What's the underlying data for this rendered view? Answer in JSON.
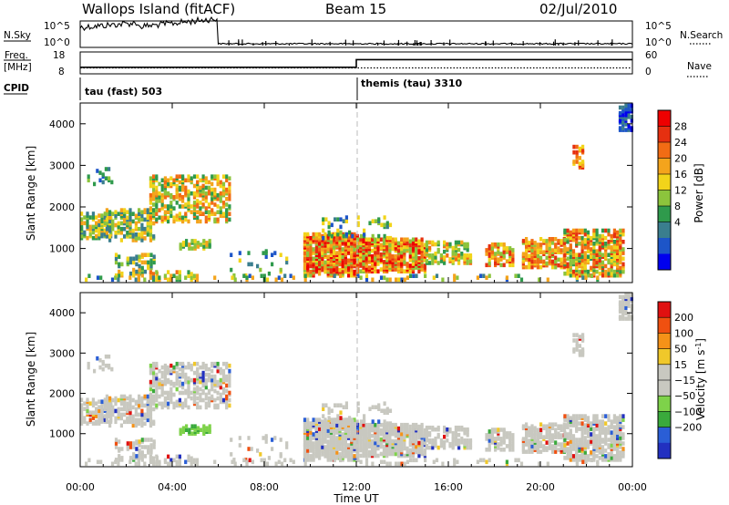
{
  "header": {
    "station": "Wallops Island (fitACF)",
    "beam": "Beam 15",
    "date": "02/Jul/2010"
  },
  "labels": {
    "nsky": "N.Sky",
    "freq": "Freq.",
    "freq_unit": "[MHz]",
    "cpid": "CPID",
    "nsearch": "N.Search",
    "nave": "Nave"
  },
  "cpid_programs": [
    {
      "name": "tau (fast) 503",
      "start_hour": 0
    },
    {
      "name": "themis (tau) 3310",
      "start_hour": 12
    }
  ],
  "colors": {
    "power_scale": [
      "#0000ee",
      "#1d55c8",
      "#3a7e8e",
      "#2f9a4c",
      "#8cc43c",
      "#f2d41a",
      "#f4a41c",
      "#f26c14",
      "#e63010",
      "#ee0000"
    ],
    "velocity_scale": [
      "#2230c0",
      "#2a5ed6",
      "#3aaa3c",
      "#7ed24a",
      "#c8c8c0",
      "#c8c8c0",
      "#f0c82a",
      "#f59218",
      "#f05010",
      "#e01010"
    ],
    "grey": "#c8c8c0"
  },
  "chart_data": [
    {
      "type": "line",
      "name": "noise-sky",
      "ylabel": "N.Sky",
      "yticks_left": [
        "10^5",
        "10^0"
      ],
      "yticks_right": [
        "10^5",
        "10^0"
      ],
      "right_label": "N.Search"
    },
    {
      "type": "line",
      "name": "frequency",
      "ylabel": "Freq. [MHz]",
      "yticks_left": [
        "18",
        "8"
      ],
      "yticks_right": [
        "60",
        "0"
      ],
      "right_label": "Nave",
      "x": [
        0,
        12,
        12,
        24
      ],
      "freq_mhz": [
        11,
        11,
        14.5,
        14.5
      ],
      "nave": [
        12,
        12,
        12,
        12
      ]
    },
    {
      "type": "heatmap",
      "name": "power",
      "ylabel": "Slant Range [km]",
      "colorbar_label": "Power [dB]",
      "colorbar_ticks": [
        "28",
        "24",
        "20",
        "16",
        "12",
        "8",
        "4"
      ],
      "x_range_hours": [
        0,
        24
      ],
      "y_range_km": [
        180,
        4500
      ],
      "yticks": [
        "1000",
        "2000",
        "3000",
        "4000"
      ]
    },
    {
      "type": "heatmap",
      "name": "velocity",
      "ylabel": "Slant Range [km]",
      "colorbar_label": "Velocity [m s",
      "colorbar_label_sup": "-1",
      "colorbar_label_end": "]",
      "colorbar_ticks": [
        "200",
        "100",
        "50",
        "15",
        "−15",
        "−50",
        "−100",
        "−200"
      ],
      "x_range_hours": [
        0,
        24
      ],
      "y_range_km": [
        180,
        4500
      ],
      "yticks": [
        "1000",
        "2000",
        "3000",
        "4000"
      ]
    }
  ],
  "xaxis": {
    "ticks": [
      "00:00",
      "04:00",
      "08:00",
      "12:00",
      "16:00",
      "20:00",
      "00:00"
    ],
    "label": "Time UT"
  }
}
